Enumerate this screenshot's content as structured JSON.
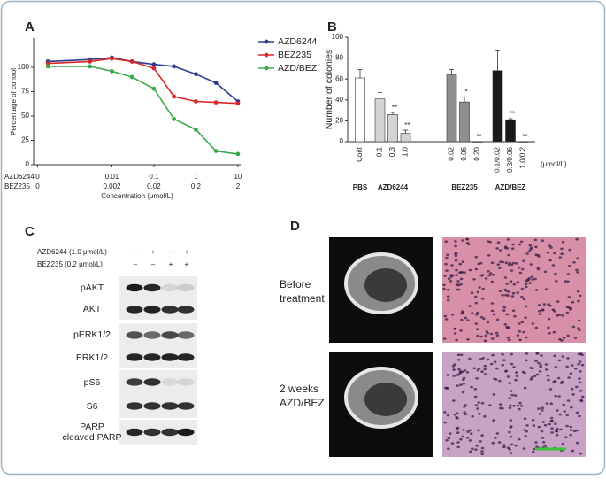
{
  "chart_data": [
    {
      "panel": "A",
      "type": "line",
      "xscale": "log",
      "legend": "upper right",
      "ylabel": "Percentage of control",
      "xlabel": "Concentration (μmol/L)",
      "x": [
        0.0003,
        0.003,
        0.01,
        0.03,
        0.1,
        0.3,
        1,
        3,
        10
      ],
      "series": [
        {
          "name": "AZD6244",
          "color": "#2e3d8f",
          "values": [
            106,
            108,
            110,
            106,
            103,
            101,
            93,
            84,
            65
          ]
        },
        {
          "name": "BEZ235",
          "color": "#d9262b",
          "values": [
            104,
            106,
            109,
            106,
            99,
            70,
            65,
            64,
            63
          ]
        },
        {
          "name": "AZD/BEZ",
          "color": "#3aa94a",
          "values": [
            101,
            101,
            96,
            90,
            78,
            47,
            36,
            14,
            11
          ]
        }
      ],
      "xlim": [
        0.000137,
        11.6
      ],
      "ylim": [
        0,
        130
      ],
      "yticks": [
        0,
        25,
        50,
        75,
        100
      ],
      "xtick_rows": [
        {
          "name": "AZD6244",
          "ticks": [
            {
              "value": 0.00017,
              "label": "0"
            },
            0.01,
            0.1,
            1,
            10
          ]
        },
        {
          "name": "BEZ235",
          "ticks": [
            {
              "value": 0.00017,
              "label": "0"
            },
            {
              "value": 0.01,
              "label": "0.002"
            },
            {
              "value": 0.1,
              "label": "0.02"
            },
            {
              "value": 1,
              "label": "0.2"
            },
            {
              "value": 10,
              "label": "2"
            }
          ]
        }
      ]
    },
    {
      "panel": "B",
      "type": "bar",
      "ylabel": "Number of colonies",
      "unit": "(μmol/L)",
      "ylim": [
        0,
        100
      ],
      "yticks": [
        0,
        20,
        40,
        60,
        80,
        100
      ],
      "groups": [
        {
          "name": "PBS",
          "categories": [
            "Cont"
          ],
          "values": [
            61
          ],
          "errors": [
            8
          ],
          "colors": [
            "#ffffff"
          ],
          "significance": [
            null
          ]
        },
        {
          "name": "AZD6244",
          "categories": [
            "0.1",
            "0.3",
            "1.0"
          ],
          "values": [
            41,
            26,
            8
          ],
          "errors": [
            6,
            2,
            3
          ],
          "colors": [
            "#d4d4d4",
            "#d4d4d4",
            "#d4d4d4"
          ],
          "significance": [
            null,
            "**",
            "**"
          ]
        },
        {
          "name": "BEZ235",
          "categories": [
            "0.02",
            "0.06",
            "0.20"
          ],
          "values": [
            64,
            38,
            0
          ],
          "errors": [
            5,
            5,
            0
          ],
          "colors": [
            "#8f8f8f",
            "#8f8f8f",
            "#8f8f8f"
          ],
          "significance": [
            null,
            "*",
            "**"
          ]
        },
        {
          "name": "AZD/BEZ",
          "categories": [
            "0.1/0.02",
            "0.3/0.06",
            "1.0/0.2"
          ],
          "values": [
            68,
            21,
            0
          ],
          "errors": [
            19,
            1,
            0
          ],
          "colors": [
            "#1a1a1a",
            "#1a1a1a",
            "#1a1a1a"
          ],
          "significance": [
            null,
            "**",
            "**"
          ]
        }
      ]
    }
  ],
  "panel_c": {
    "label": "C",
    "treatments": [
      {
        "name": "AZD6244 (1.0 μmol/L)",
        "signs": [
          "–",
          "+",
          "–",
          "+"
        ]
      },
      {
        "name": "BEZ235 (0.2 μmol/L)",
        "signs": [
          "–",
          "–",
          "+",
          "+"
        ]
      }
    ],
    "bands": [
      "pAKT",
      "AKT",
      "pERK1/2",
      "ERK1/2",
      "pS6",
      "S6",
      "PARP",
      "cleaved PARP"
    ]
  },
  "panel_d": {
    "label": "D",
    "rows": [
      {
        "label": [
          "Before",
          "treatment"
        ]
      },
      {
        "label": [
          "2 weeks",
          "AZD/BEZ"
        ]
      }
    ]
  }
}
